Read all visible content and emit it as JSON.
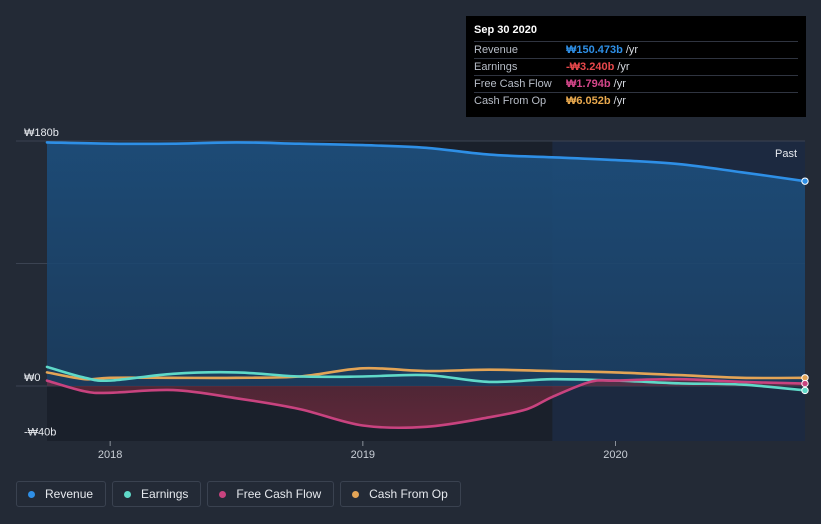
{
  "tooltip": {
    "date": "Sep 30 2020",
    "rows": [
      {
        "name": "Revenue",
        "value": "₩150.473b",
        "unit": "/yr",
        "color": "#2e8fe6"
      },
      {
        "name": "Earnings",
        "value": "-₩3.240b",
        "unit": "/yr",
        "color": "#e8484b"
      },
      {
        "name": "Free Cash Flow",
        "value": "₩1.794b",
        "unit": "/yr",
        "color": "#d4478a"
      },
      {
        "name": "Cash From Op",
        "value": "₩6.052b",
        "unit": "/yr",
        "color": "#e9a94e"
      }
    ]
  },
  "legend": [
    {
      "label": "Revenue",
      "color": "#2e8fe6"
    },
    {
      "label": "Earnings",
      "color": "#5fd9c8"
    },
    {
      "label": "Free Cash Flow",
      "color": "#c8437f"
    },
    {
      "label": "Cash From Op",
      "color": "#e3a456"
    }
  ],
  "chart_data": {
    "type": "line",
    "title": "",
    "xlabel": "",
    "ylabel": "",
    "y_tick_labels": [
      "₩180b",
      "₩0",
      "-₩40b"
    ],
    "x_tick_labels": [
      "2018",
      "2019",
      "2020"
    ],
    "x_ticks": [
      2018.0,
      2019.0,
      2020.0
    ],
    "xlim": [
      2017.75,
      2020.75
    ],
    "ylim": [
      -40,
      180
    ],
    "past_label": "Past",
    "past_region_start": 2019.75,
    "series": [
      {
        "name": "Revenue",
        "color": "#2e8fe6",
        "x": [
          2017.75,
          2018.0,
          2018.25,
          2018.5,
          2018.75,
          2019.0,
          2019.25,
          2019.5,
          2019.75,
          2020.0,
          2020.25,
          2020.5,
          2020.75
        ],
        "values": [
          179,
          178,
          178,
          179,
          178,
          177,
          175,
          170,
          168,
          166,
          163,
          157,
          150.5
        ]
      },
      {
        "name": "Earnings",
        "color": "#5fd9c8",
        "x": [
          2017.75,
          2017.9,
          2018.0,
          2018.25,
          2018.5,
          2018.75,
          2019.0,
          2019.25,
          2019.5,
          2019.75,
          2020.0,
          2020.25,
          2020.5,
          2020.75
        ],
        "values": [
          14,
          6,
          4,
          9,
          10,
          7,
          7,
          8,
          3,
          5,
          4,
          2,
          1,
          -3.24
        ]
      },
      {
        "name": "Free Cash Flow",
        "color": "#c8437f",
        "x": [
          2017.75,
          2017.9,
          2018.0,
          2018.25,
          2018.5,
          2018.75,
          2019.0,
          2019.25,
          2019.5,
          2019.65,
          2019.75,
          2019.9,
          2020.0,
          2020.25,
          2020.5,
          2020.75
        ],
        "values": [
          4,
          -4,
          -5,
          -3,
          -9,
          -17,
          -29,
          -30,
          -23,
          -17,
          -8,
          3,
          4,
          5,
          3,
          1.79
        ]
      },
      {
        "name": "Cash From Op",
        "color": "#e3a456",
        "x": [
          2017.75,
          2017.9,
          2018.0,
          2018.25,
          2018.5,
          2018.75,
          2019.0,
          2019.25,
          2019.5,
          2019.75,
          2020.0,
          2020.25,
          2020.5,
          2020.75
        ],
        "values": [
          10,
          5,
          6,
          6,
          6,
          7,
          13,
          11,
          12,
          11,
          10,
          8,
          6,
          6.05
        ]
      }
    ]
  }
}
